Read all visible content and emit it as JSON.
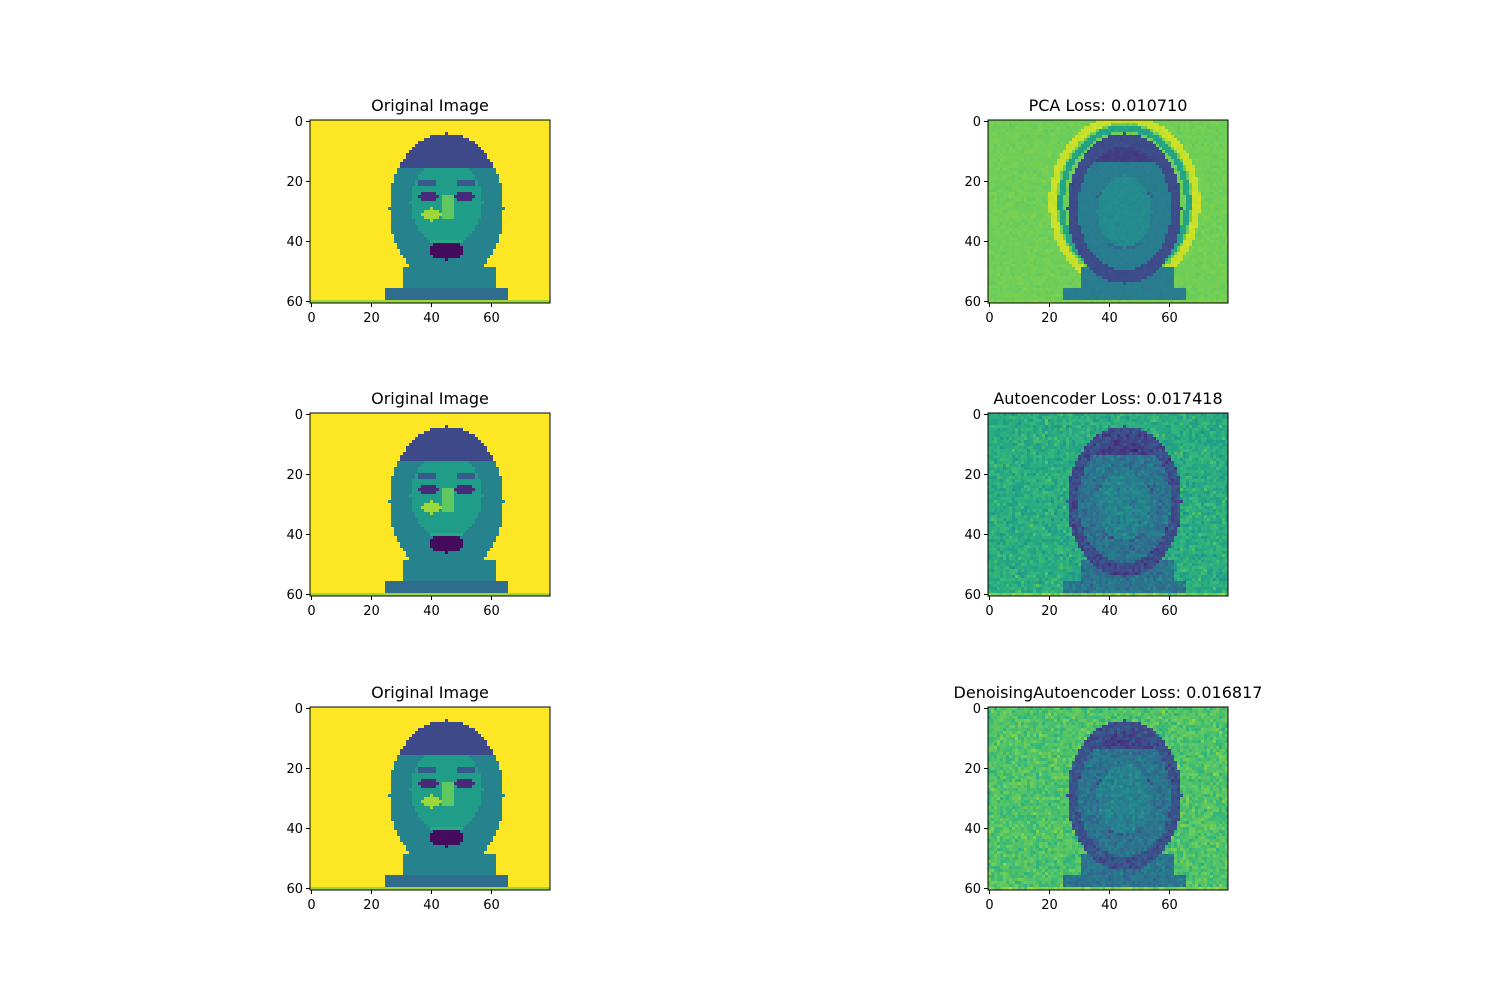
{
  "figure": {
    "panels": [
      {
        "title": "Original Image",
        "kind": "original",
        "xticks": [
          "0",
          "20",
          "40",
          "60"
        ],
        "yticks": [
          "0",
          "20",
          "40",
          "60"
        ]
      },
      {
        "title": "PCA Loss: 0.010710",
        "kind": "pca",
        "xticks": [
          "0",
          "20",
          "40",
          "60"
        ],
        "yticks": [
          "0",
          "20",
          "40",
          "60"
        ]
      },
      {
        "title": "Original Image",
        "kind": "original",
        "xticks": [
          "0",
          "20",
          "40",
          "60"
        ],
        "yticks": [
          "0",
          "20",
          "40",
          "60"
        ]
      },
      {
        "title": "Autoencoder Loss: 0.017418",
        "kind": "autoencoder",
        "xticks": [
          "0",
          "20",
          "40",
          "60"
        ],
        "yticks": [
          "0",
          "20",
          "40",
          "60"
        ]
      },
      {
        "title": "Original Image",
        "kind": "original",
        "xticks": [
          "0",
          "20",
          "40",
          "60"
        ],
        "yticks": [
          "0",
          "20",
          "40",
          "60"
        ]
      },
      {
        "title": "DenoisingAutoencoder Loss: 0.016817",
        "kind": "denoising",
        "xticks": [
          "0",
          "20",
          "40",
          "60"
        ],
        "yticks": [
          "0",
          "20",
          "40",
          "60"
        ]
      }
    ]
  },
  "chart_data": {
    "type": "heatmap",
    "colormap": "viridis",
    "image_width": 80,
    "image_height": 61,
    "xlim": [
      0,
      80
    ],
    "ylim": [
      61,
      0
    ],
    "grid": false,
    "losses": [
      {
        "method": "PCA",
        "loss": 0.01071
      },
      {
        "method": "Autoencoder",
        "loss": 0.017418
      },
      {
        "method": "DenoisingAutoencoder",
        "loss": 0.016817
      }
    ]
  }
}
